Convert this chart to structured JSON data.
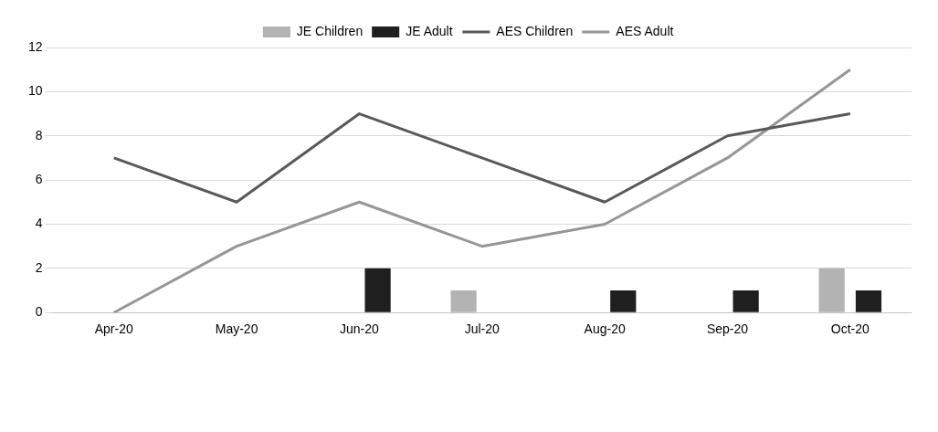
{
  "chart_data": {
    "type": "bar",
    "categories": [
      "Apr-20",
      "May-20",
      "Jun-20",
      "Jul-20",
      "Aug-20",
      "Sep-20",
      "Oct-20"
    ],
    "series": [
      {
        "name": "JE Children",
        "color": "#b3b3b3",
        "values": [
          0,
          0,
          0,
          1,
          0,
          0,
          2
        ]
      },
      {
        "name": "JE Adult",
        "color": "#1f1f1f",
        "values": [
          0,
          0,
          2,
          0,
          1,
          1,
          1
        ]
      },
      {
        "name": "AES Children",
        "type": "line",
        "color": "#595959",
        "values": [
          7,
          5,
          9,
          7,
          5,
          8,
          9
        ]
      },
      {
        "name": "AES Adult",
        "type": "line",
        "color": "#969696",
        "values": [
          0,
          3,
          5,
          3,
          4,
          7,
          11
        ]
      }
    ],
    "ylim": [
      0,
      12
    ],
    "yticks": [
      0,
      2,
      4,
      6,
      8,
      10,
      12
    ],
    "grid": "y",
    "legend": "top",
    "marker": "none",
    "line_style": "solid"
  }
}
